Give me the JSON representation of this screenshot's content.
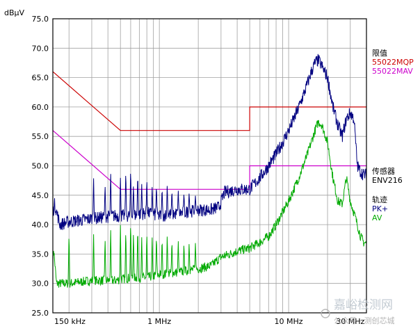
{
  "chart_data": {
    "type": "line",
    "ylabel": "dBµV",
    "x_scale": "log",
    "xlim_mhz": [
      0.15,
      40
    ],
    "ylim": [
      25,
      75
    ],
    "y_ticks": [
      "75.0",
      "70.0",
      "65.0",
      "60.0",
      "55.0",
      "50.0",
      "45.0",
      "40.0",
      "35.0",
      "30.0",
      "25.0"
    ],
    "y_tick_values": [
      75,
      70,
      65,
      60,
      55,
      50,
      45,
      40,
      35,
      30,
      25
    ],
    "x_ticks": [
      {
        "label": "150 kHz",
        "value": 0.15
      },
      {
        "label": "1 MHz",
        "value": 1
      },
      {
        "label": "10 MHz",
        "value": 10
      },
      {
        "label": "30 MHz",
        "value": 30
      }
    ],
    "grid": true,
    "legend": {
      "limit_header": "限值",
      "limit_qp": "55022MQP",
      "limit_av": "55022MAV",
      "transducer_header": "传感器",
      "transducer_name": "ENV216",
      "trace_header": "轨迹",
      "trace_pk": "PK+",
      "trace_av": "AV"
    },
    "colors": {
      "qp_limit": "#cc0000",
      "av_limit": "#cc00cc",
      "pk_trace": "#000080",
      "av_trace": "#00aa00",
      "grid": "#a0a0a0"
    },
    "limits": {
      "qp": {
        "x": [
          0.15,
          0.5,
          0.5,
          5,
          5,
          40
        ],
        "y": [
          66,
          56,
          56,
          56,
          60,
          60
        ]
      },
      "av": {
        "x": [
          0.15,
          0.5,
          0.5,
          5,
          5,
          40
        ],
        "y": [
          56,
          46,
          46,
          46,
          50,
          50
        ]
      }
    },
    "pk_envelope": {
      "x": [
        0.15,
        0.155,
        0.17,
        0.2,
        0.3,
        0.45,
        0.6,
        0.8,
        1.0,
        1.5,
        2.0,
        2.5,
        2.9,
        3.2,
        4.0,
        5.0,
        6.0,
        7.0,
        8.0,
        9.0,
        10.0,
        11.0,
        12.0,
        13.0,
        14.0,
        15.0,
        16.0,
        17.0,
        18.0,
        20.0,
        22.0,
        24.0,
        26.0,
        28.0,
        30.0,
        32.0,
        34.0,
        36.0,
        38.0,
        40.0
      ],
      "y": [
        42,
        43.5,
        40,
        40.5,
        41,
        41.5,
        41.5,
        42,
        41.5,
        42,
        42.5,
        42.5,
        43,
        45.5,
        46,
        46,
        48,
        50,
        52,
        54,
        56,
        58,
        60,
        62,
        64,
        66,
        67.5,
        68,
        67,
        65,
        60,
        57,
        55,
        58,
        59,
        58,
        50,
        49,
        48.5,
        48.5
      ]
    },
    "av_envelope": {
      "x": [
        0.15,
        0.152,
        0.16,
        0.2,
        0.3,
        0.45,
        0.6,
        0.8,
        1.0,
        1.5,
        2.0,
        2.5,
        3.0,
        3.5,
        4.0,
        5.0,
        6.0,
        7.0,
        8.0,
        10.0,
        12.0,
        14.0,
        16.0,
        17.0,
        18.0,
        20.0,
        22.0,
        24.0,
        26.0,
        28.0,
        30.0,
        32.0,
        34.0,
        36.0,
        38.0,
        40.0
      ],
      "y": [
        33.5,
        36,
        30,
        30,
        30.5,
        30.5,
        31,
        31,
        31.5,
        32,
        32.5,
        33,
        34.5,
        35,
        35.5,
        36,
        37,
        38,
        40,
        44,
        48,
        52,
        56,
        57.5,
        57,
        54,
        48,
        44,
        43.5,
        48,
        44,
        42,
        40,
        38,
        37,
        36.8
      ]
    },
    "pk_spikes": [
      {
        "x": 0.31,
        "y": 48
      },
      {
        "x": 0.38,
        "y": 47
      },
      {
        "x": 0.42,
        "y": 49
      },
      {
        "x": 0.5,
        "y": 48
      },
      {
        "x": 0.55,
        "y": 49.5
      },
      {
        "x": 0.6,
        "y": 50
      },
      {
        "x": 0.63,
        "y": 47
      },
      {
        "x": 0.68,
        "y": 49
      },
      {
        "x": 0.73,
        "y": 47
      },
      {
        "x": 0.8,
        "y": 48
      },
      {
        "x": 0.88,
        "y": 46.5
      },
      {
        "x": 0.95,
        "y": 47
      },
      {
        "x": 1.05,
        "y": 46.5
      },
      {
        "x": 1.15,
        "y": 47
      },
      {
        "x": 1.25,
        "y": 46
      },
      {
        "x": 1.4,
        "y": 46
      },
      {
        "x": 1.55,
        "y": 45.5
      },
      {
        "x": 1.7,
        "y": 45.5
      },
      {
        "x": 1.9,
        "y": 45
      }
    ],
    "av_spikes": [
      {
        "x": 0.2,
        "y": 39
      },
      {
        "x": 0.31,
        "y": 38.5
      },
      {
        "x": 0.38,
        "y": 38
      },
      {
        "x": 0.42,
        "y": 39.5
      },
      {
        "x": 0.5,
        "y": 40
      },
      {
        "x": 0.55,
        "y": 39.5
      },
      {
        "x": 0.6,
        "y": 41
      },
      {
        "x": 0.63,
        "y": 39
      },
      {
        "x": 0.68,
        "y": 40
      },
      {
        "x": 0.73,
        "y": 38
      },
      {
        "x": 0.8,
        "y": 39
      },
      {
        "x": 0.88,
        "y": 38
      },
      {
        "x": 0.95,
        "y": 38.5
      },
      {
        "x": 1.05,
        "y": 38
      },
      {
        "x": 1.15,
        "y": 38.5
      },
      {
        "x": 1.25,
        "y": 37.5
      },
      {
        "x": 1.4,
        "y": 37.5
      },
      {
        "x": 1.55,
        "y": 37
      },
      {
        "x": 1.7,
        "y": 37
      },
      {
        "x": 1.9,
        "y": 37
      }
    ]
  },
  "watermark": {
    "main": "嘉峪检测网",
    "sub": "公众号 · 测创芯城"
  }
}
